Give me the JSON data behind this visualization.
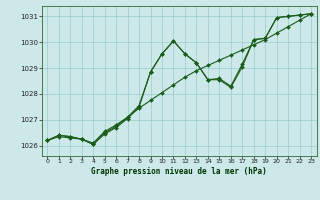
{
  "title": "Graphe pression niveau de la mer (hPa)",
  "bg_color": "#cce8e8",
  "grid_color": "#99cccc",
  "line_color": "#1a5c1a",
  "xlim": [
    -0.5,
    23.5
  ],
  "ylim": [
    1025.6,
    1031.4
  ],
  "yticks": [
    1026,
    1027,
    1028,
    1029,
    1030,
    1031
  ],
  "xticks": [
    0,
    1,
    2,
    3,
    4,
    5,
    6,
    7,
    8,
    9,
    10,
    11,
    12,
    13,
    14,
    15,
    16,
    17,
    18,
    19,
    20,
    21,
    22,
    23
  ],
  "line1_x": [
    0,
    1,
    2,
    3,
    4,
    5,
    6,
    7,
    8,
    9,
    10,
    11,
    12,
    13,
    14,
    15,
    16,
    17,
    18,
    19,
    20,
    21,
    22,
    23
  ],
  "line1_y": [
    1026.2,
    1026.4,
    1026.35,
    1026.25,
    1026.1,
    1026.55,
    1026.8,
    1027.1,
    1027.45,
    1027.75,
    1028.05,
    1028.35,
    1028.65,
    1028.9,
    1029.1,
    1029.3,
    1029.5,
    1029.7,
    1029.9,
    1030.1,
    1030.35,
    1030.6,
    1030.85,
    1031.1
  ],
  "line2_x": [
    0,
    1,
    2,
    3,
    4,
    5,
    6,
    7,
    8,
    9,
    10,
    11,
    12,
    13,
    14,
    15,
    16,
    17,
    18,
    19,
    20,
    21,
    22,
    23
  ],
  "line2_y": [
    1026.2,
    1026.4,
    1026.35,
    1026.25,
    1026.05,
    1026.5,
    1026.75,
    1027.1,
    1027.55,
    1028.85,
    1029.55,
    1030.05,
    1029.55,
    1029.2,
    1028.55,
    1028.55,
    1028.25,
    1029.05,
    1030.1,
    1030.15,
    1030.95,
    1031.0,
    1031.05,
    1031.1
  ],
  "line3_x": [
    0,
    1,
    2,
    3,
    4,
    5,
    6,
    7,
    8,
    9,
    10,
    11,
    12,
    13,
    14,
    15,
    16,
    17,
    18,
    19,
    20,
    21,
    22,
    23
  ],
  "line3_y": [
    1026.2,
    1026.35,
    1026.3,
    1026.25,
    1026.05,
    1026.45,
    1026.7,
    1027.05,
    1027.5,
    1028.85,
    1029.55,
    1030.05,
    1029.55,
    1029.2,
    1028.55,
    1028.6,
    1028.3,
    1029.15,
    1030.1,
    1030.15,
    1030.95,
    1031.0,
    1031.05,
    1031.1
  ]
}
